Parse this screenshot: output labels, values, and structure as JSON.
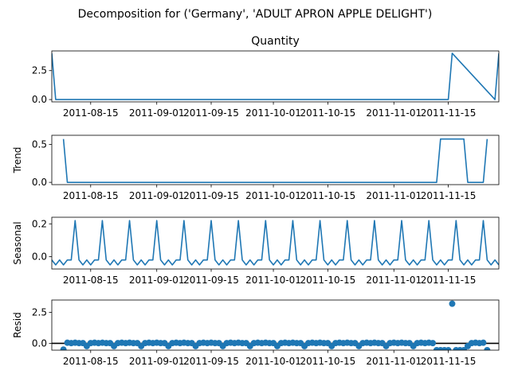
{
  "figure": {
    "suptitle": "Decomposition for ('Germany', 'ADULT APRON APPLE DELIGHT')"
  },
  "colors": {
    "series": "#1f77b4",
    "axes": "#000000",
    "background": "#ffffff"
  },
  "chart_data": [
    {
      "type": "line",
      "title": "Quantity",
      "ylabel": "",
      "ylim": [
        -0.2,
        4.2
      ],
      "yticks": [
        "0.0",
        "2.5"
      ],
      "ytick_values": [
        0.0,
        2.5
      ],
      "xlim": [
        "2011-08-05",
        "2011-11-28"
      ],
      "xtick_labels": [
        "2011-08-15",
        "2011-09-01",
        "2011-09-15",
        "2011-10-01",
        "2011-10-15",
        "2011-11-01",
        "2011-11-15"
      ],
      "x": [
        "2011-08-05",
        "2011-08-06",
        "2011-11-14",
        "2011-11-15",
        "2011-11-16",
        "2011-11-27",
        "2011-11-28"
      ],
      "y": [
        4,
        0,
        0,
        0,
        4,
        0,
        4
      ]
    },
    {
      "type": "line",
      "title": "",
      "ylabel": "Trend",
      "ylim": [
        -0.03,
        0.62
      ],
      "yticks": [
        "0.0",
        "0.5"
      ],
      "ytick_values": [
        0.0,
        0.5
      ],
      "xlim": [
        "2011-08-05",
        "2011-11-28"
      ],
      "xtick_labels": [
        "2011-08-15",
        "2011-09-01",
        "2011-09-15",
        "2011-10-01",
        "2011-10-15",
        "2011-11-01",
        "2011-11-15"
      ],
      "x": [
        "2011-08-08",
        "2011-08-09",
        "2011-11-12",
        "2011-11-13",
        "2011-11-19",
        "2011-11-20",
        "2011-11-24",
        "2011-11-25"
      ],
      "y": [
        0.571,
        0,
        0,
        0.571,
        0.571,
        0,
        0,
        0.571
      ]
    },
    {
      "type": "line",
      "title": "",
      "ylabel": "Seasonal",
      "ylim": [
        -0.075,
        0.24
      ],
      "yticks": [
        "0.0",
        "0.2"
      ],
      "ytick_values": [
        0.0,
        0.2
      ],
      "xlim": [
        "2011-08-05",
        "2011-11-28"
      ],
      "xtick_labels": [
        "2011-08-15",
        "2011-09-01",
        "2011-09-15",
        "2011-10-01",
        "2011-10-15",
        "2011-11-01",
        "2011-11-15"
      ],
      "start": "2011-08-05",
      "pattern": [
        -0.02,
        -0.05,
        -0.02,
        -0.05,
        -0.02,
        -0.02,
        0.22
      ],
      "count": 116
    },
    {
      "type": "scatter",
      "title": "",
      "ylabel": "Resid",
      "ylim": [
        -0.55,
        3.5
      ],
      "yticks": [
        "0.0",
        "2.5"
      ],
      "ytick_values": [
        0.0,
        2.5
      ],
      "hline": 0,
      "xlim": [
        "2011-08-05",
        "2011-11-28"
      ],
      "xtick_labels": [
        "2011-08-15",
        "2011-09-01",
        "2011-09-15",
        "2011-10-01",
        "2011-10-15",
        "2011-11-01",
        "2011-11-15"
      ],
      "start": "2011-08-08",
      "pattern": [
        0.02,
        0.05,
        0.02,
        0.05,
        0.02,
        0.02,
        -0.22
      ],
      "count": 110,
      "overrides": [
        {
          "x": "2011-08-08",
          "y": -0.5
        },
        {
          "x": "2011-11-12",
          "y": -0.55
        },
        {
          "x": "2011-11-13",
          "y": -0.55
        },
        {
          "x": "2011-11-14",
          "y": -0.55
        },
        {
          "x": "2011-11-15",
          "y": -0.55
        },
        {
          "x": "2011-11-16",
          "y": 3.2
        },
        {
          "x": "2011-11-17",
          "y": -0.55
        },
        {
          "x": "2011-11-18",
          "y": -0.55
        },
        {
          "x": "2011-11-19",
          "y": -0.55
        },
        {
          "x": "2011-11-25",
          "y": -0.55
        }
      ]
    }
  ]
}
